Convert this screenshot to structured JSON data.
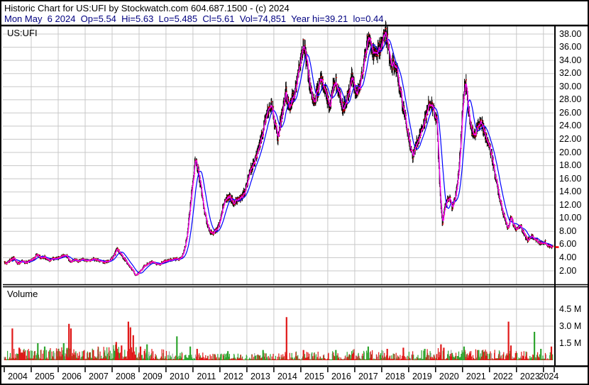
{
  "header": {
    "line1": "Historic Chart for US:UFI by Stockwatch.com 604.687.1500 - (c) 2024",
    "line2": "Mon May  6 2024  Op=5.54  Hi=5.63  Lo=5.485  Cl=5.61  Vol=74,851  Year hi=39.21  lo=0.44"
  },
  "price_panel": {
    "symbol_label": "US:UFI",
    "y_tick_labels": [
      "38.00",
      "36.00",
      "34.00",
      "32.00",
      "30.00",
      "28.00",
      "26.00",
      "24.00",
      "22.00",
      "20.00",
      "18.00",
      "16.00",
      "14.00",
      "12.00",
      "10.00",
      "8.00",
      "6.00",
      "4.00",
      "2.00"
    ]
  },
  "volume_panel": {
    "label": "Volume",
    "y_tick_labels": [
      "4.5 M",
      "3.0 M",
      "1.5 M"
    ]
  },
  "x_axis": {
    "year_labels": [
      "2004",
      "2005",
      "2006",
      "2007",
      "2008",
      "2009",
      "2010",
      "2011",
      "2012",
      "2013",
      "2014",
      "2015",
      "2016",
      "2017",
      "2018",
      "2019",
      "2020",
      "2021",
      "2022",
      "2023",
      "2024"
    ]
  },
  "colors": {
    "background": "#FFFFFF",
    "grid": "#C8C8C8",
    "border": "#000000",
    "bars": "#000000",
    "close_tick": "#FF0000",
    "ma_fast": "#FF00FF",
    "ma_slow": "#0000FF",
    "volume_up": "#2FA52F",
    "volume_down": "#E01818",
    "volume_neutral": "#A0A0A0",
    "quote_text": "#000080",
    "last_price_marker": "#FF0000"
  },
  "chart_data": {
    "type": "ohlc-line",
    "title": "Historic Chart for US:UFI",
    "x_range": [
      2004.0,
      2024.4
    ],
    "price_axis": {
      "min": 0,
      "max": 39.2,
      "tick_step": 2,
      "tick_min": 2,
      "tick_max": 38
    },
    "volume_axis_M": {
      "ticks": [
        1.5,
        3.0,
        4.5
      ]
    },
    "quote": {
      "date": "Mon May 6 2024",
      "open": 5.54,
      "high": 5.63,
      "low": 5.485,
      "close": 5.61,
      "volume": 74851,
      "year_high": 39.21,
      "year_low": 0.44
    },
    "series": [
      {
        "name": "close-price-anchors",
        "points": [
          [
            2004.0,
            3.3
          ],
          [
            2004.08,
            3.0
          ],
          [
            2004.2,
            3.6
          ],
          [
            2004.35,
            4.0
          ],
          [
            2004.5,
            3.1
          ],
          [
            2004.65,
            3.5
          ],
          [
            2004.8,
            3.3
          ],
          [
            2004.95,
            3.5
          ],
          [
            2005.1,
            3.9
          ],
          [
            2005.2,
            4.4
          ],
          [
            2005.35,
            4.0
          ],
          [
            2005.5,
            4.1
          ],
          [
            2005.65,
            3.6
          ],
          [
            2005.8,
            3.9
          ],
          [
            2005.95,
            3.8
          ],
          [
            2006.15,
            4.3
          ],
          [
            2006.3,
            4.4
          ],
          [
            2006.45,
            3.4
          ],
          [
            2006.6,
            3.7
          ],
          [
            2006.75,
            3.5
          ],
          [
            2006.9,
            3.7
          ],
          [
            2007.1,
            3.5
          ],
          [
            2007.3,
            3.8
          ],
          [
            2007.5,
            3.6
          ],
          [
            2007.7,
            3.3
          ],
          [
            2007.9,
            3.6
          ],
          [
            2008.05,
            4.2
          ],
          [
            2008.18,
            5.3
          ],
          [
            2008.3,
            4.7
          ],
          [
            2008.45,
            3.8
          ],
          [
            2008.6,
            3.0
          ],
          [
            2008.75,
            2.1
          ],
          [
            2008.88,
            1.3
          ],
          [
            2009.0,
            1.7
          ],
          [
            2009.15,
            2.6
          ],
          [
            2009.3,
            3.0
          ],
          [
            2009.45,
            3.3
          ],
          [
            2009.6,
            3.1
          ],
          [
            2009.75,
            3.0
          ],
          [
            2009.9,
            3.4
          ],
          [
            2010.05,
            3.5
          ],
          [
            2010.2,
            3.7
          ],
          [
            2010.35,
            3.8
          ],
          [
            2010.5,
            3.8
          ],
          [
            2010.6,
            4.2
          ],
          [
            2010.7,
            5.5
          ],
          [
            2010.8,
            8.0
          ],
          [
            2010.9,
            12.0
          ],
          [
            2011.0,
            16.0
          ],
          [
            2011.08,
            18.8
          ],
          [
            2011.18,
            17.5
          ],
          [
            2011.3,
            14.5
          ],
          [
            2011.4,
            11.5
          ],
          [
            2011.5,
            9.5
          ],
          [
            2011.6,
            8.3
          ],
          [
            2011.7,
            7.6
          ],
          [
            2011.8,
            8.0
          ],
          [
            2011.9,
            8.4
          ],
          [
            2012.0,
            9.5
          ],
          [
            2012.1,
            11.5
          ],
          [
            2012.2,
            12.8
          ],
          [
            2012.35,
            13.2
          ],
          [
            2012.5,
            12.4
          ],
          [
            2012.65,
            12.8
          ],
          [
            2012.8,
            13.2
          ],
          [
            2012.9,
            14.0
          ],
          [
            2013.0,
            15.5
          ],
          [
            2013.15,
            17.5
          ],
          [
            2013.3,
            19.0
          ],
          [
            2013.45,
            21.0
          ],
          [
            2013.6,
            23.5
          ],
          [
            2013.75,
            26.0
          ],
          [
            2013.85,
            27.5
          ],
          [
            2013.95,
            26.5
          ],
          [
            2014.05,
            24.0
          ],
          [
            2014.15,
            22.3
          ],
          [
            2014.3,
            26.0
          ],
          [
            2014.45,
            29.3
          ],
          [
            2014.55,
            26.5
          ],
          [
            2014.7,
            28.5
          ],
          [
            2014.85,
            30.5
          ],
          [
            2014.95,
            33.0
          ],
          [
            2015.1,
            36.8
          ],
          [
            2015.2,
            34.0
          ],
          [
            2015.3,
            31.0
          ],
          [
            2015.45,
            27.5
          ],
          [
            2015.6,
            29.0
          ],
          [
            2015.75,
            31.2
          ],
          [
            2015.9,
            29.5
          ],
          [
            2016.05,
            27.0
          ],
          [
            2016.25,
            31.0
          ],
          [
            2016.4,
            29.5
          ],
          [
            2016.55,
            26.5
          ],
          [
            2016.7,
            28.0
          ],
          [
            2016.9,
            31.8
          ],
          [
            2017.05,
            28.5
          ],
          [
            2017.2,
            30.5
          ],
          [
            2017.35,
            34.0
          ],
          [
            2017.5,
            38.0
          ],
          [
            2017.6,
            37.0
          ],
          [
            2017.7,
            34.8
          ],
          [
            2017.85,
            35.5
          ],
          [
            2018.0,
            36.5
          ],
          [
            2018.15,
            38.2
          ],
          [
            2018.25,
            36.0
          ],
          [
            2018.35,
            33.0
          ],
          [
            2018.5,
            33.8
          ],
          [
            2018.6,
            31.5
          ],
          [
            2018.75,
            28.0
          ],
          [
            2018.9,
            24.5
          ],
          [
            2019.05,
            21.0
          ],
          [
            2019.15,
            19.3
          ],
          [
            2019.3,
            21.5
          ],
          [
            2019.45,
            23.0
          ],
          [
            2019.6,
            25.0
          ],
          [
            2019.75,
            27.3
          ],
          [
            2019.9,
            26.8
          ],
          [
            2020.05,
            24.5
          ],
          [
            2020.15,
            15.0
          ],
          [
            2020.25,
            9.0
          ],
          [
            2020.35,
            12.0
          ],
          [
            2020.5,
            13.3
          ],
          [
            2020.62,
            11.5
          ],
          [
            2020.75,
            13.5
          ],
          [
            2020.85,
            17.0
          ],
          [
            2020.95,
            23.0
          ],
          [
            2021.05,
            29.5
          ],
          [
            2021.12,
            30.3
          ],
          [
            2021.2,
            27.0
          ],
          [
            2021.3,
            23.8
          ],
          [
            2021.42,
            22.3
          ],
          [
            2021.55,
            24.0
          ],
          [
            2021.68,
            24.8
          ],
          [
            2021.8,
            23.0
          ],
          [
            2021.95,
            21.5
          ],
          [
            2022.1,
            19.0
          ],
          [
            2022.25,
            15.5
          ],
          [
            2022.4,
            12.5
          ],
          [
            2022.55,
            10.0
          ],
          [
            2022.68,
            8.3
          ],
          [
            2022.78,
            10.2
          ],
          [
            2022.9,
            8.8
          ],
          [
            2023.0,
            8.2
          ],
          [
            2023.12,
            9.0
          ],
          [
            2023.25,
            7.8
          ],
          [
            2023.4,
            6.6
          ],
          [
            2023.55,
            7.3
          ],
          [
            2023.68,
            6.9
          ],
          [
            2023.8,
            6.4
          ],
          [
            2023.95,
            6.1
          ],
          [
            2024.05,
            6.4
          ],
          [
            2024.15,
            5.9
          ],
          [
            2024.28,
            5.7
          ],
          [
            2024.35,
            5.61
          ]
        ]
      },
      {
        "name": "ma-fast",
        "window_bars": 4,
        "color_key": "ma_fast"
      },
      {
        "name": "ma-slow",
        "window_bars": 20,
        "color_key": "ma_slow"
      }
    ],
    "volume_base_M": [
      [
        2004,
        0.4
      ],
      [
        2005,
        0.45
      ],
      [
        2006,
        0.45
      ],
      [
        2007,
        0.4
      ],
      [
        2008,
        0.55
      ],
      [
        2009,
        0.45
      ],
      [
        2010,
        0.4
      ],
      [
        2011,
        0.3
      ],
      [
        2012,
        0.22
      ],
      [
        2013,
        0.28
      ],
      [
        2014,
        0.3
      ],
      [
        2015,
        0.3
      ],
      [
        2016,
        0.32
      ],
      [
        2017,
        0.38
      ],
      [
        2018,
        0.35
      ],
      [
        2019,
        0.3
      ],
      [
        2020,
        0.42
      ],
      [
        2021,
        0.38
      ],
      [
        2022,
        0.38
      ],
      [
        2023,
        0.32
      ],
      [
        2024,
        0.28
      ]
    ],
    "volume_spikes_M": [
      [
        2004.3,
        2.8,
        "down"
      ],
      [
        2004.55,
        1.1,
        "down"
      ],
      [
        2005.25,
        1.5,
        "up"
      ],
      [
        2005.5,
        1.2,
        "up"
      ],
      [
        2005.7,
        0.9,
        "up"
      ],
      [
        2006.2,
        1.5,
        "up"
      ],
      [
        2006.4,
        3.2,
        "down"
      ],
      [
        2006.48,
        2.8,
        "down"
      ],
      [
        2007.3,
        0.9,
        "down"
      ],
      [
        2008.15,
        1.6,
        "down"
      ],
      [
        2008.35,
        1.3,
        "down"
      ],
      [
        2008.6,
        3.4,
        "down"
      ],
      [
        2008.68,
        2.9,
        "down"
      ],
      [
        2008.78,
        2.2,
        "down"
      ],
      [
        2009.05,
        1.2,
        "down"
      ],
      [
        2009.3,
        1.4,
        "up"
      ],
      [
        2010.4,
        2.1,
        "up"
      ],
      [
        2010.9,
        1.2,
        "up"
      ],
      [
        2011.15,
        1.0,
        "down"
      ],
      [
        2012.3,
        0.8,
        "up"
      ],
      [
        2013.6,
        0.9,
        "up"
      ],
      [
        2014.47,
        3.8,
        "down"
      ],
      [
        2015.1,
        0.9,
        "down"
      ],
      [
        2016.3,
        0.9,
        "up"
      ],
      [
        2017.5,
        1.2,
        "up"
      ],
      [
        2018.2,
        1.0,
        "down"
      ],
      [
        2018.8,
        1.1,
        "down"
      ],
      [
        2019.6,
        1.0,
        "up"
      ],
      [
        2020.2,
        1.4,
        "down"
      ],
      [
        2020.3,
        1.1,
        "down"
      ],
      [
        2021.05,
        1.2,
        "up"
      ],
      [
        2021.6,
        0.9,
        "up"
      ],
      [
        2022.7,
        3.4,
        "down"
      ],
      [
        2022.8,
        1.3,
        "down"
      ],
      [
        2023.66,
        2.5,
        "up"
      ],
      [
        2023.9,
        1.0,
        "up"
      ],
      [
        2024.3,
        1.2,
        "down"
      ]
    ],
    "last_close": 5.61
  }
}
